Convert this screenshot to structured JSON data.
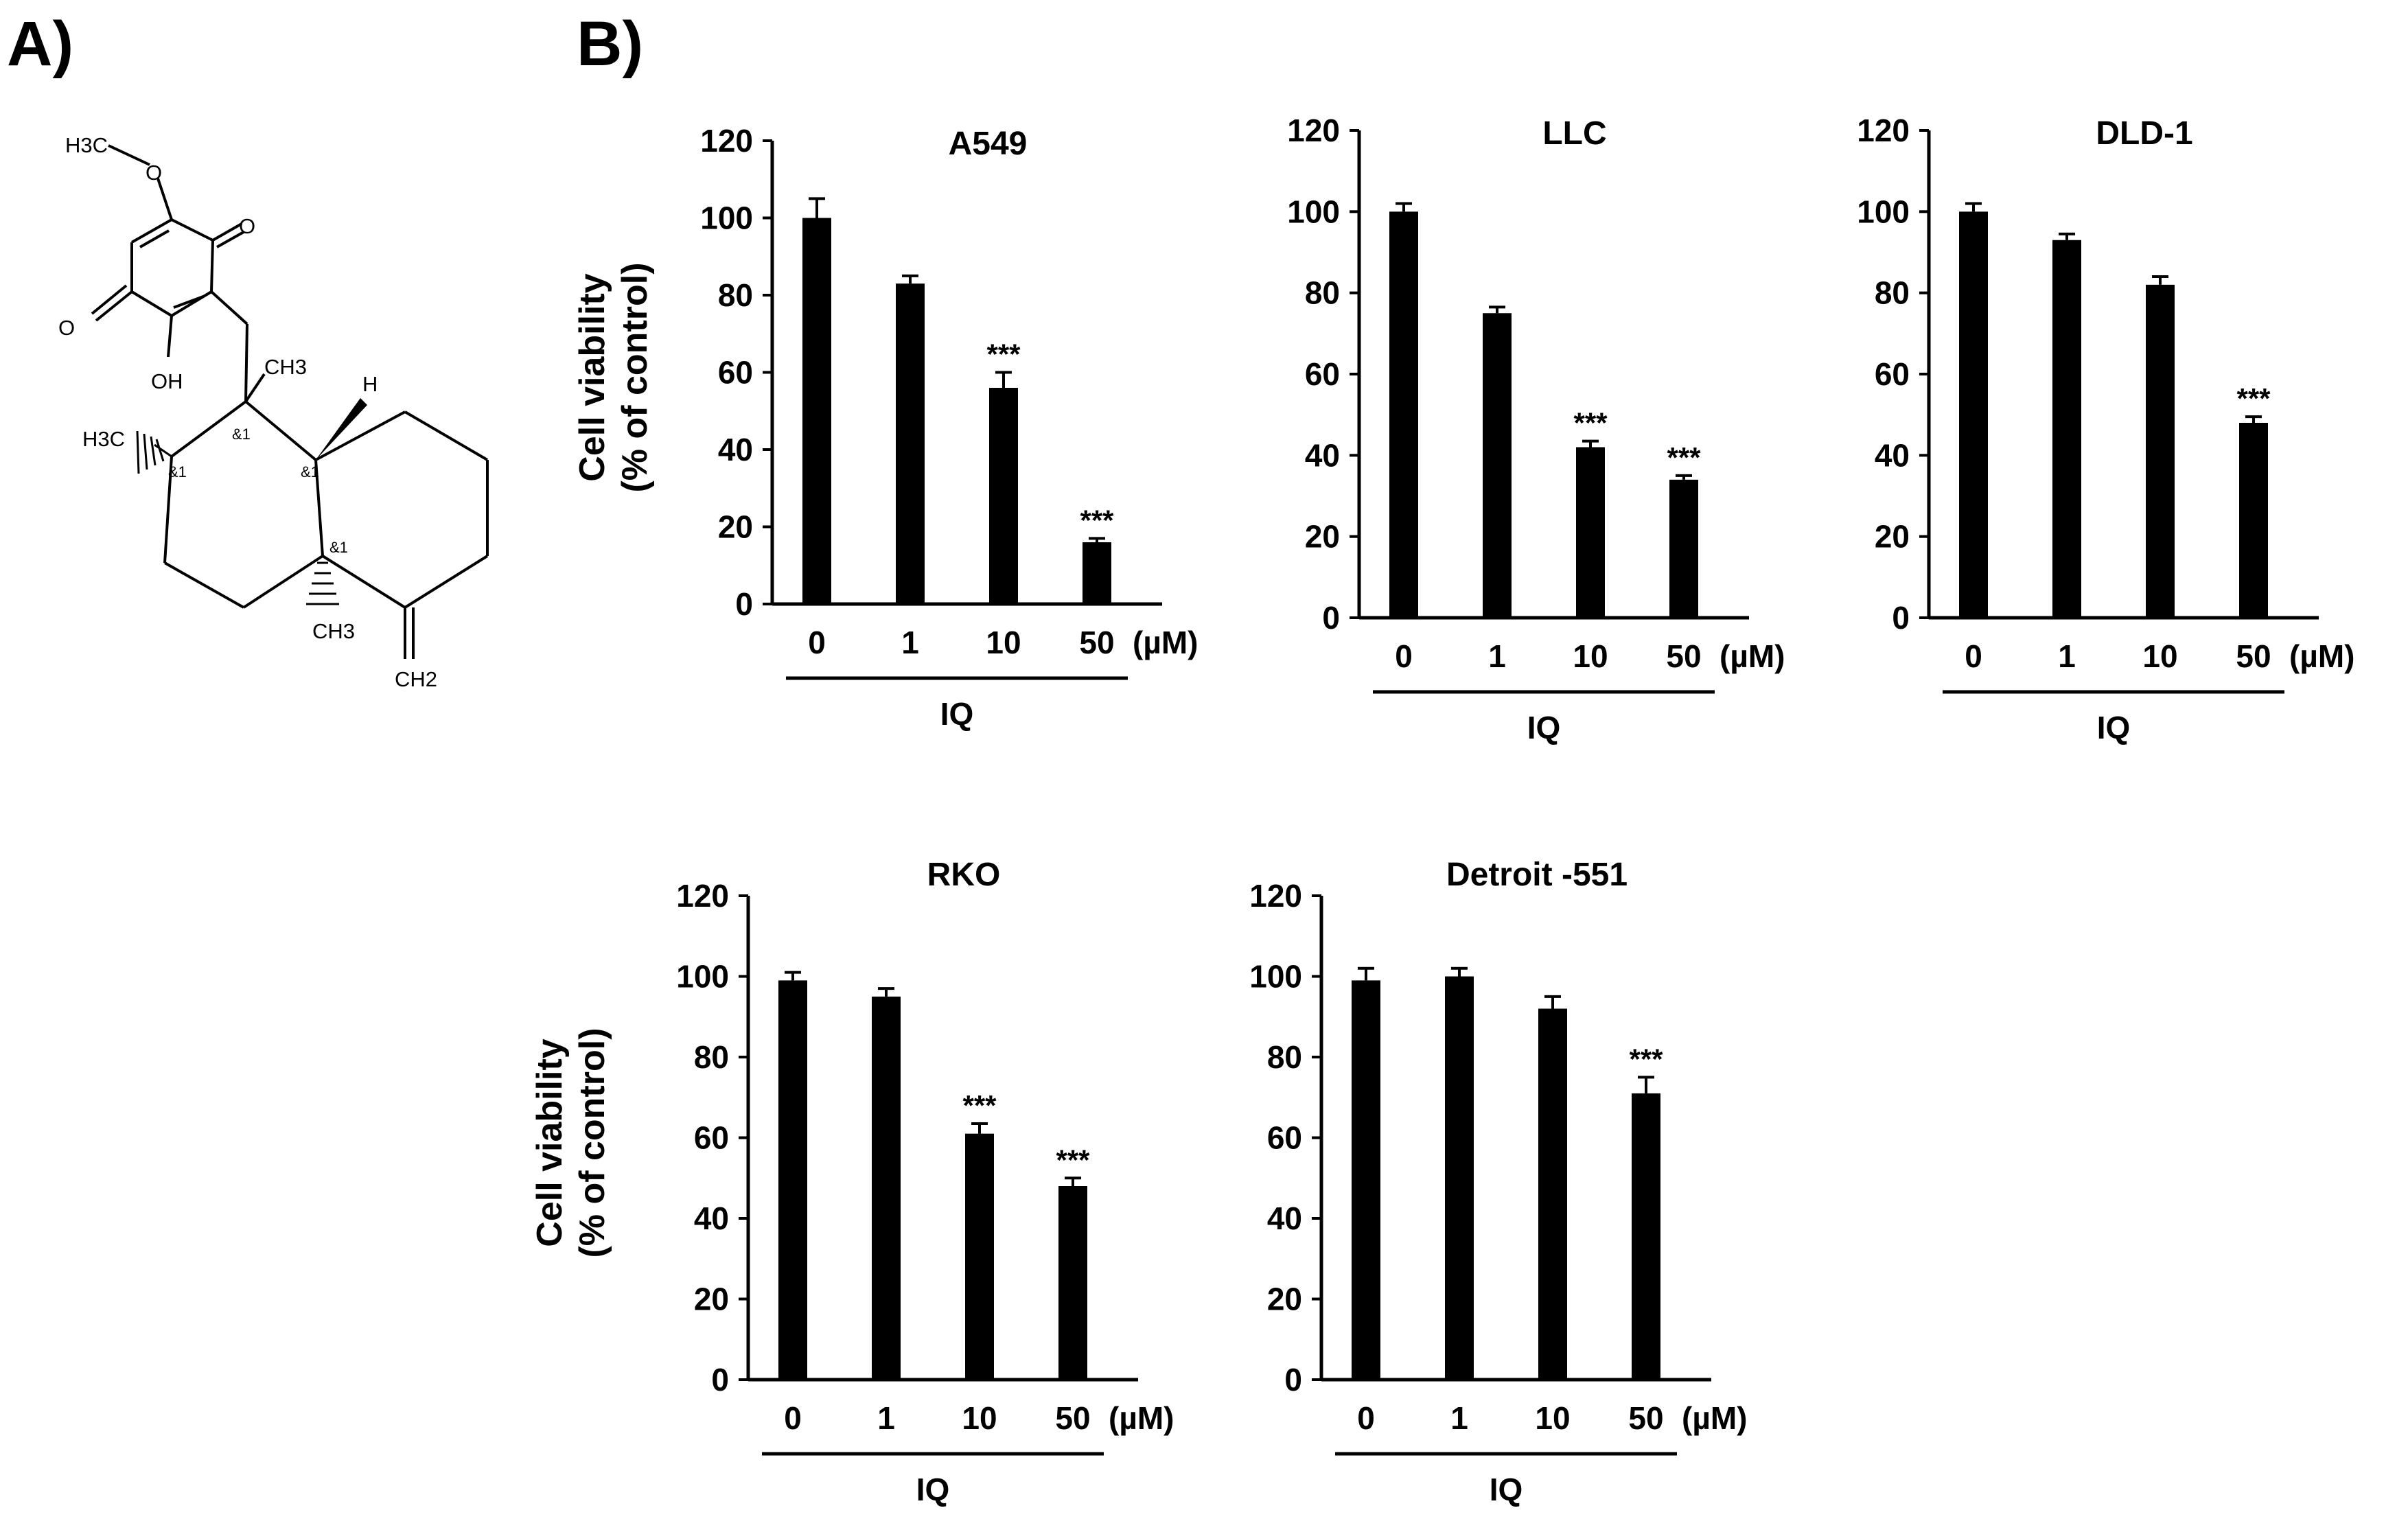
{
  "panels": {
    "a": "A)",
    "b": "B)"
  },
  "molecule": {
    "name": "IQ",
    "labels": {
      "h3c_top": "H3C",
      "o_methoxy": "O",
      "o_ketone_right": "O",
      "o_ketone_left": "O",
      "oh": "OH",
      "ch3_quaternary": "CH3",
      "h_ring": "H",
      "h3c_left": "H3C",
      "ch3_bottom": "CH3",
      "ch2": "CH2",
      "stereo_1": "&1",
      "stereo_2": "&1",
      "stereo_3": "&1",
      "stereo_4": "&1"
    }
  },
  "axis_common": {
    "ylabel_line1": "Cell viability",
    "ylabel_line2": "(% of control)",
    "unit": "(µM)",
    "treatment": "IQ",
    "yticks": [
      "0",
      "20",
      "40",
      "60",
      "80",
      "100",
      "120"
    ]
  },
  "chart_data": [
    {
      "type": "bar",
      "title": "A549",
      "categories": [
        "0",
        "1",
        "10",
        "50"
      ],
      "values": [
        100,
        83,
        56,
        16
      ],
      "errors": [
        5,
        2,
        4,
        1
      ],
      "significance": [
        "",
        "",
        "***",
        "***"
      ],
      "ylim": [
        0,
        120
      ],
      "xlabel": "IQ (µM)",
      "ylabel": "Cell viability (% of control)",
      "show_ylabel": true
    },
    {
      "type": "bar",
      "title": "LLC",
      "categories": [
        "0",
        "1",
        "10",
        "50"
      ],
      "values": [
        100,
        75,
        42,
        34
      ],
      "errors": [
        2,
        1.5,
        1.5,
        1
      ],
      "significance": [
        "",
        "",
        "***",
        "***"
      ],
      "ylim": [
        0,
        120
      ],
      "xlabel": "IQ (µM)",
      "ylabel": "",
      "show_ylabel": false
    },
    {
      "type": "bar",
      "title": "DLD-1",
      "categories": [
        "0",
        "1",
        "10",
        "50"
      ],
      "values": [
        100,
        93,
        82,
        48
      ],
      "errors": [
        2,
        1.5,
        2,
        1.5
      ],
      "significance": [
        "",
        "",
        "",
        "***"
      ],
      "ylim": [
        0,
        120
      ],
      "xlabel": "IQ (µM)",
      "ylabel": "",
      "show_ylabel": false
    },
    {
      "type": "bar",
      "title": "RKO",
      "categories": [
        "0",
        "1",
        "10",
        "50"
      ],
      "values": [
        99,
        95,
        61,
        48
      ],
      "errors": [
        2,
        2,
        2.5,
        2
      ],
      "significance": [
        "",
        "",
        "***",
        "***"
      ],
      "ylim": [
        0,
        120
      ],
      "xlabel": "IQ (µM)",
      "ylabel": "Cell viability (% of control)",
      "show_ylabel": true
    },
    {
      "type": "bar",
      "title": "Detroit -551",
      "categories": [
        "0",
        "1",
        "10",
        "50"
      ],
      "values": [
        99,
        100,
        92,
        71
      ],
      "errors": [
        3,
        2,
        3,
        4
      ],
      "significance": [
        "",
        "",
        "",
        "***"
      ],
      "ylim": [
        0,
        120
      ],
      "xlabel": "IQ (µM)",
      "ylabel": "",
      "show_ylabel": false
    }
  ]
}
